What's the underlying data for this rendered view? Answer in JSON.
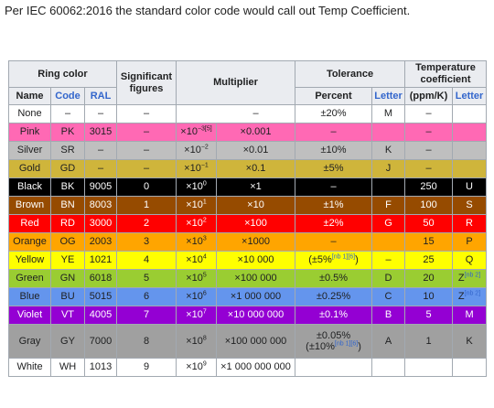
{
  "intro_text": "Per IEC 60062:2016 the standard color code would call out Temp Coefficient.",
  "headers": {
    "ring_color": "Ring color",
    "significant_figures": "Significant figures",
    "multiplier": "Multiplier",
    "tolerance": "Tolerance",
    "temperature_coefficient": "Temperature coefficient",
    "name": "Name",
    "code": "Code",
    "ral": "RAL",
    "percent": "Percent",
    "letter": "Letter",
    "ppm": "(ppm/K)",
    "letter2": "Letter"
  },
  "rows": [
    {
      "name": "None",
      "code": "–",
      "ral": "–",
      "sig": "–",
      "mult_exp_base": "",
      "mult_exp": "",
      "mult_dec": "–",
      "tol_pct": "±20%",
      "tol_pct_sup": "",
      "tol_letter": "M",
      "tc_ppm": "–",
      "tc_letter": "",
      "tc_letter_sup": "",
      "bg": "#ffffff",
      "fg": "#202122"
    },
    {
      "name": "Pink",
      "code": "PK",
      "ral": "3015",
      "sig": "–",
      "mult_exp_base": "×10",
      "mult_exp": "−3[5]",
      "mult_dec": "×0.001",
      "tol_pct": "–",
      "tol_pct_sup": "",
      "tol_letter": "",
      "tc_ppm": "–",
      "tc_letter": "",
      "tc_letter_sup": "",
      "bg": "#ff69b4",
      "fg": "#202122"
    },
    {
      "name": "Silver",
      "code": "SR",
      "ral": "–",
      "sig": "–",
      "mult_exp_base": "×10",
      "mult_exp": "−2",
      "mult_dec": "×0.01",
      "tol_pct": "±10%",
      "tol_pct_sup": "",
      "tol_letter": "K",
      "tc_ppm": "–",
      "tc_letter": "",
      "tc_letter_sup": "",
      "bg": "#bfbfbf",
      "fg": "#202122"
    },
    {
      "name": "Gold",
      "code": "GD",
      "ral": "–",
      "sig": "–",
      "mult_exp_base": "×10",
      "mult_exp": "−1",
      "mult_dec": "×0.1",
      "tol_pct": "±5%",
      "tol_pct_sup": "",
      "tol_letter": "J",
      "tc_ppm": "–",
      "tc_letter": "",
      "tc_letter_sup": "",
      "bg": "#cfb53b",
      "fg": "#202122"
    },
    {
      "name": "Black",
      "code": "BK",
      "ral": "9005",
      "sig": "0",
      "mult_exp_base": "×10",
      "mult_exp": "0",
      "mult_dec": "×1",
      "tol_pct": "–",
      "tol_pct_sup": "",
      "tol_letter": "",
      "tc_ppm": "250",
      "tc_letter": "U",
      "tc_letter_sup": "",
      "bg": "#000000",
      "fg": "#ffffff"
    },
    {
      "name": "Brown",
      "code": "BN",
      "ral": "8003",
      "sig": "1",
      "mult_exp_base": "×10",
      "mult_exp": "1",
      "mult_dec": "×10",
      "tol_pct": "±1%",
      "tol_pct_sup": "",
      "tol_letter": "F",
      "tc_ppm": "100",
      "tc_letter": "S",
      "tc_letter_sup": "",
      "bg": "#964b00",
      "fg": "#ffffff"
    },
    {
      "name": "Red",
      "code": "RD",
      "ral": "3000",
      "sig": "2",
      "mult_exp_base": "×10",
      "mult_exp": "2",
      "mult_dec": "×100",
      "tol_pct": "±2%",
      "tol_pct_sup": "",
      "tol_letter": "G",
      "tc_ppm": "50",
      "tc_letter": "R",
      "tc_letter_sup": "",
      "bg": "#ff0000",
      "fg": "#ffffff"
    },
    {
      "name": "Orange",
      "code": "OG",
      "ral": "2003",
      "sig": "3",
      "mult_exp_base": "×10",
      "mult_exp": "3",
      "mult_dec": "×1000",
      "tol_pct": "–",
      "tol_pct_sup": "",
      "tol_letter": "",
      "tc_ppm": "15",
      "tc_letter": "P",
      "tc_letter_sup": "",
      "bg": "#ffa500",
      "fg": "#202122"
    },
    {
      "name": "Yellow",
      "code": "YE",
      "ral": "1021",
      "sig": "4",
      "mult_exp_base": "×10",
      "mult_exp": "4",
      "mult_dec": "×10 000",
      "tol_pct": "(±5%",
      "tol_pct_sup": "[nb 1][6]",
      "tol_pct_after": ")",
      "tol_letter": "–",
      "tc_ppm": "25",
      "tc_letter": "Q",
      "tc_letter_sup": "",
      "bg": "#ffff00",
      "fg": "#202122"
    },
    {
      "name": "Green",
      "code": "GN",
      "ral": "6018",
      "sig": "5",
      "mult_exp_base": "×10",
      "mult_exp": "5",
      "mult_dec": "×100 000",
      "tol_pct": "±0.5%",
      "tol_pct_sup": "",
      "tol_letter": "D",
      "tc_ppm": "20",
      "tc_letter": "Z",
      "tc_letter_sup": "[nb 2]",
      "bg": "#9acd32",
      "fg": "#202122"
    },
    {
      "name": "Blue",
      "code": "BU",
      "ral": "5015",
      "sig": "6",
      "mult_exp_base": "×10",
      "mult_exp": "6",
      "mult_dec": "×1 000 000",
      "tol_pct": "±0.25%",
      "tol_pct_sup": "",
      "tol_letter": "C",
      "tc_ppm": "10",
      "tc_letter": "Z",
      "tc_letter_sup": "[nb 2]",
      "bg": "#6495ed",
      "fg": "#202122"
    },
    {
      "name": "Violet",
      "code": "VT",
      "ral": "4005",
      "sig": "7",
      "mult_exp_base": "×10",
      "mult_exp": "7",
      "mult_dec": "×10 000 000",
      "tol_pct": "±0.1%",
      "tol_pct_sup": "",
      "tol_letter": "B",
      "tc_ppm": "5",
      "tc_letter": "M",
      "tc_letter_sup": "",
      "bg": "#9400d3",
      "fg": "#ffffff"
    },
    {
      "name": "Gray",
      "code": "GY",
      "ral": "7000",
      "sig": "8",
      "mult_exp_base": "×10",
      "mult_exp": "8",
      "mult_dec": "×100 000 000",
      "tol_pct": "±0.05%",
      "tol_pct2": "(±10%",
      "tol_pct_sup": "[nb 1][6]",
      "tol_pct_after": ")",
      "tol_letter": "A",
      "tc_ppm": "1",
      "tc_letter": "K",
      "tc_letter_sup": "",
      "bg": "#a0a0a0",
      "fg": "#202122"
    },
    {
      "name": "White",
      "code": "WH",
      "ral": "1013",
      "sig": "9",
      "mult_exp_base": "×10",
      "mult_exp": "9",
      "mult_dec": "×1 000 000 000",
      "tol_pct": "",
      "tol_pct_sup": "",
      "tol_letter": "",
      "tc_ppm": "",
      "tc_letter": "",
      "tc_letter_sup": "",
      "bg": "#ffffff",
      "fg": "#202122"
    }
  ]
}
